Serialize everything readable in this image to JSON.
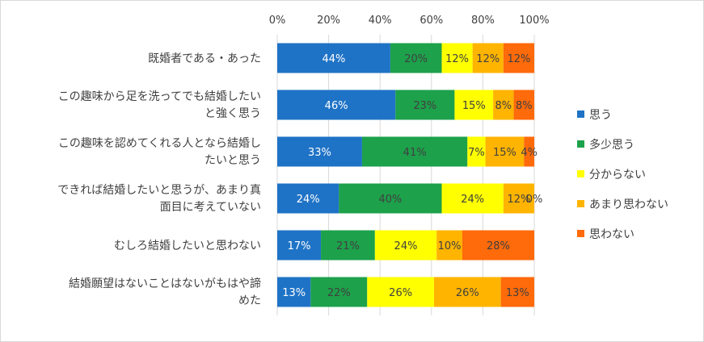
{
  "chart_data": {
    "type": "bar",
    "orientation": "horizontal",
    "stacked": "percent",
    "categories": [
      [
        "既婚者である・あった"
      ],
      [
        "この趣味から足を洗ってでも結婚したい",
        "と強く思う"
      ],
      [
        "この趣味を認めてくれる人となら結婚し",
        "たいと思う"
      ],
      [
        "できれば結婚したいと思うが、あまり真",
        "面目に考えていない"
      ],
      [
        "むしろ結婚したいと思わない"
      ],
      [
        "結婚願望はないことはないがもはや諦",
        "めた"
      ]
    ],
    "series": [
      {
        "name": "思う",
        "color": "#1F73C6",
        "label_color": "#ffffff",
        "values": [
          44,
          46,
          33,
          24,
          17,
          13
        ]
      },
      {
        "name": "多少思う",
        "color": "#1DA14B",
        "label_color": "#404040",
        "values": [
          20,
          23,
          41,
          40,
          21,
          22
        ]
      },
      {
        "name": "分からない",
        "color": "#FFFF00",
        "label_color": "#404040",
        "values": [
          12,
          15,
          7,
          24,
          24,
          26
        ]
      },
      {
        "name": "あまり思わない",
        "color": "#FFB400",
        "label_color": "#404040",
        "values": [
          12,
          8,
          15,
          12,
          10,
          26
        ]
      },
      {
        "name": "思わない",
        "color": "#FF6A0A",
        "label_color": "#404040",
        "values": [
          12,
          8,
          4,
          0,
          28,
          13
        ]
      }
    ],
    "x_ticks": [
      "0%",
      "20%",
      "40%",
      "60%",
      "80%",
      "100%"
    ],
    "xlim": [
      0,
      100
    ],
    "legend_position": "right",
    "grid": true
  }
}
